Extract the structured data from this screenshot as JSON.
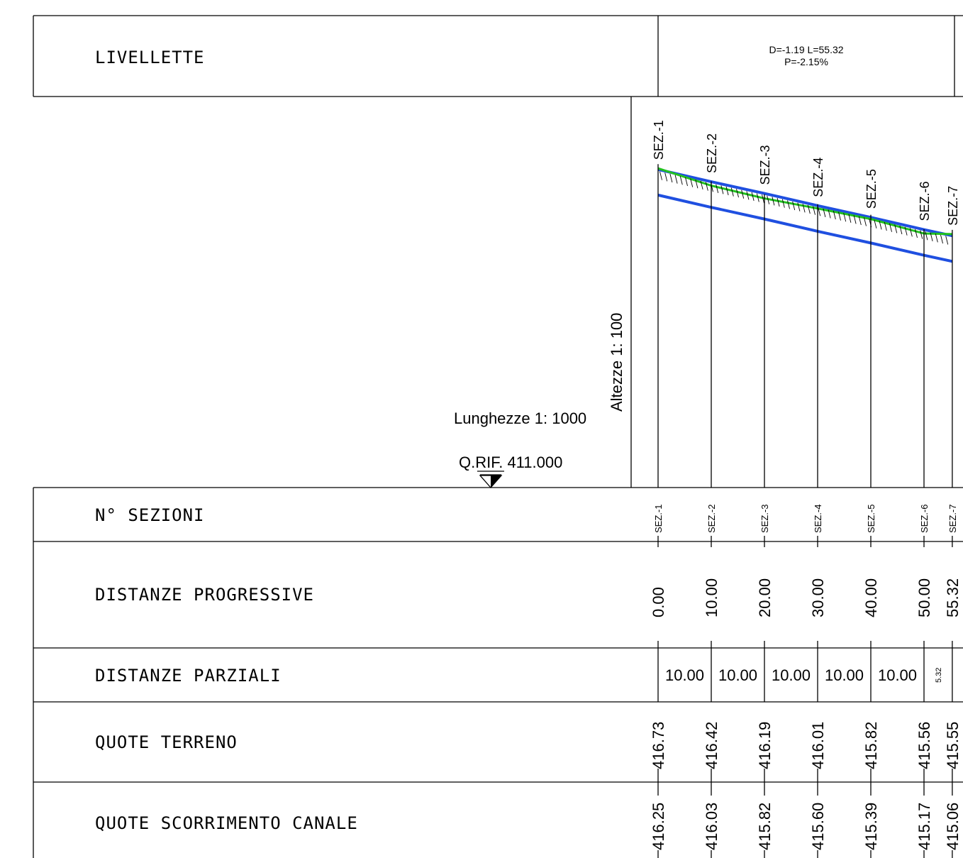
{
  "rows": {
    "livellette": "LIVELLETTE",
    "sezioni": "N°  SEZIONI",
    "progressive": "DISTANZE  PROGRESSIVE",
    "parziali": "DISTANZE  PARZIALI",
    "terreno": "QUOTE  TERRENO",
    "scorrimento": "QUOTE  SCORRIMENTO  CANALE"
  },
  "livelletta": {
    "line1": "D=-1.19 L=55.32",
    "line2": "P=-2.15%"
  },
  "scales": {
    "lunghezze": "Lunghezze 1: 1000",
    "altezze": "Altezze 1: 100",
    "qrif": "Q.RIF. 411.000"
  },
  "colors": {
    "canal": "#1f4fe0",
    "terrain": "#22c21f"
  },
  "reference_quota": 411.0,
  "sections": [
    {
      "name": "SEZ.-1",
      "prog": "0.00",
      "terreno": "416.73",
      "scorrimento": "416.25"
    },
    {
      "name": "SEZ.-2",
      "prog": "10.00",
      "terreno": "416.42",
      "scorrimento": "416.03"
    },
    {
      "name": "SEZ.-3",
      "prog": "20.00",
      "terreno": "416.19",
      "scorrimento": "415.82"
    },
    {
      "name": "SEZ.-4",
      "prog": "30.00",
      "terreno": "416.01",
      "scorrimento": "415.60"
    },
    {
      "name": "SEZ.-5",
      "prog": "40.00",
      "terreno": "415.82",
      "scorrimento": "415.39"
    },
    {
      "name": "SEZ.-6",
      "prog": "50.00",
      "terreno": "415.56",
      "scorrimento": "415.17"
    },
    {
      "name": "SEZ.-7",
      "prog": "55.32",
      "terreno": "415.55",
      "scorrimento": "415.06"
    }
  ],
  "parziali": [
    "10.00",
    "10.00",
    "10.00",
    "10.00",
    "10.00",
    "5.32"
  ]
}
